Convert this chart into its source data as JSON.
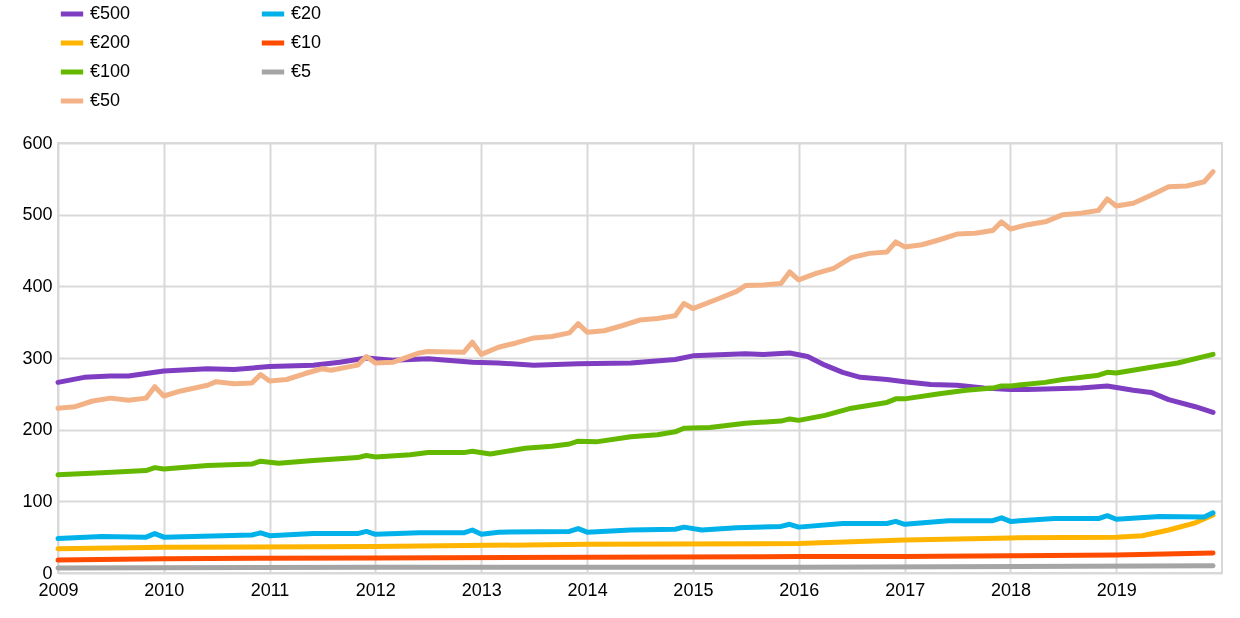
{
  "chart_data": {
    "type": "line",
    "xlim": [
      "2009",
      "2020"
    ],
    "xticks": [
      "2009",
      "2010",
      "2011",
      "2012",
      "2013",
      "2014",
      "2015",
      "2016",
      "2017",
      "2018",
      "2019"
    ],
    "ylim": [
      0,
      600
    ],
    "yticks": [
      0,
      100,
      200,
      300,
      400,
      500,
      600
    ],
    "grid": true,
    "legend": "top left",
    "series": [
      {
        "name": "€500",
        "color": "#7f3dc2",
        "x": [
          "2009-01",
          "2009-04",
          "2009-07",
          "2009-09",
          "2010-01",
          "2010-06",
          "2010-09",
          "2011-01",
          "2011-06",
          "2011-09",
          "2011-12",
          "2012-03",
          "2012-07",
          "2012-12",
          "2013-03",
          "2013-07",
          "2013-12",
          "2014-06",
          "2014-11",
          "2015-01",
          "2015-07",
          "2015-09",
          "2015-12",
          "2016-02",
          "2016-04",
          "2016-06",
          "2016-08",
          "2016-11",
          "2017-01",
          "2017-04",
          "2017-07",
          "2017-10",
          "2018-01",
          "2018-03",
          "2018-09",
          "2018-12",
          "2019-03",
          "2019-05",
          "2019-07",
          "2019-10",
          "2019-12"
        ],
        "values": [
          266,
          273,
          275,
          275,
          282,
          285,
          284,
          288,
          290,
          294,
          300,
          297,
          299,
          294,
          293,
          290,
          292,
          293,
          298,
          303,
          306,
          305,
          307,
          302,
          290,
          280,
          273,
          270,
          267,
          263,
          262,
          258,
          256,
          256,
          258,
          261,
          255,
          252,
          242,
          232,
          224
        ]
      },
      {
        "name": "€200",
        "color": "#ffb400",
        "x": [
          "2009-01",
          "2010-01",
          "2012-01",
          "2014-01",
          "2016-01",
          "2017-01",
          "2018-01",
          "2019-01",
          "2019-04",
          "2019-07",
          "2019-10",
          "2019-12"
        ],
        "values": [
          34,
          36,
          37,
          40,
          41,
          46,
          49,
          50,
          52,
          60,
          70,
          81
        ]
      },
      {
        "name": "€100",
        "color": "#65b800",
        "x": [
          "2009-01",
          "2009-06",
          "2009-11",
          "2009-12",
          "2010-01",
          "2010-06",
          "2010-11",
          "2010-12",
          "2011-02",
          "2011-06",
          "2011-11",
          "2011-12",
          "2012-01",
          "2012-05",
          "2012-07",
          "2012-11",
          "2012-12",
          "2013-02",
          "2013-06",
          "2013-09",
          "2013-11",
          "2013-12",
          "2014-02",
          "2014-06",
          "2014-09",
          "2014-11",
          "2014-12",
          "2015-03",
          "2015-07",
          "2015-11",
          "2015-12",
          "2016-01",
          "2016-04",
          "2016-07",
          "2016-11",
          "2016-12",
          "2017-01",
          "2017-05",
          "2017-08",
          "2017-11",
          "2017-12",
          "2018-01",
          "2018-05",
          "2018-07",
          "2018-11",
          "2018-12",
          "2019-01",
          "2019-05",
          "2019-08",
          "2019-12"
        ],
        "values": [
          137,
          140,
          143,
          147,
          145,
          150,
          152,
          156,
          153,
          157,
          161,
          164,
          162,
          165,
          168,
          168,
          170,
          166,
          174,
          177,
          180,
          184,
          183,
          190,
          193,
          197,
          202,
          203,
          209,
          212,
          215,
          213,
          220,
          230,
          238,
          243,
          243,
          250,
          255,
          258,
          261,
          261,
          266,
          270,
          276,
          280,
          279,
          287,
          293,
          305
        ]
      },
      {
        "name": "€50",
        "color": "#f3b286",
        "x": [
          "2009-01",
          "2009-03",
          "2009-05",
          "2009-07",
          "2009-09",
          "2009-11",
          "2009-12",
          "2010-01",
          "2010-03",
          "2010-06",
          "2010-07",
          "2010-09",
          "2010-11",
          "2010-12",
          "2011-01",
          "2011-03",
          "2011-05",
          "2011-07",
          "2011-08",
          "2011-11",
          "2011-12",
          "2012-01",
          "2012-03",
          "2012-06",
          "2012-07",
          "2012-11",
          "2012-12",
          "2013-01",
          "2013-03",
          "2013-05",
          "2013-07",
          "2013-09",
          "2013-11",
          "2013-12",
          "2014-01",
          "2014-03",
          "2014-05",
          "2014-07",
          "2014-09",
          "2014-11",
          "2014-12",
          "2015-01",
          "2015-04",
          "2015-06",
          "2015-07",
          "2015-09",
          "2015-11",
          "2015-12",
          "2016-01",
          "2016-03",
          "2016-05",
          "2016-07",
          "2016-09",
          "2016-11",
          "2016-12",
          "2017-01",
          "2017-03",
          "2017-05",
          "2017-07",
          "2017-09",
          "2017-11",
          "2017-12",
          "2018-01",
          "2018-03",
          "2018-05",
          "2018-07",
          "2018-09",
          "2018-11",
          "2018-12",
          "2019-01",
          "2019-03",
          "2019-05",
          "2019-07",
          "2019-09",
          "2019-11",
          "2019-12"
        ],
        "values": [
          230,
          232,
          240,
          244,
          241,
          244,
          260,
          247,
          254,
          262,
          267,
          264,
          265,
          277,
          268,
          270,
          278,
          285,
          283,
          290,
          302,
          293,
          294,
          307,
          309,
          308,
          322,
          305,
          315,
          321,
          328,
          330,
          335,
          348,
          336,
          338,
          345,
          353,
          355,
          359,
          376,
          369,
          383,
          393,
          401,
          402,
          404,
          420,
          409,
          418,
          425,
          440,
          446,
          448,
          462,
          455,
          458,
          465,
          473,
          474,
          478,
          490,
          480,
          486,
          490,
          500,
          502,
          506,
          522,
          512,
          516,
          527,
          539,
          540,
          546,
          560
        ]
      },
      {
        "name": "€20",
        "color": "#00b1ea",
        "x": [
          "2009-01",
          "2009-06",
          "2009-11",
          "2009-12",
          "2010-01",
          "2010-11",
          "2010-12",
          "2011-01",
          "2011-06",
          "2011-11",
          "2011-12",
          "2012-01",
          "2012-06",
          "2012-11",
          "2012-12",
          "2013-01",
          "2013-03",
          "2013-11",
          "2013-12",
          "2014-01",
          "2014-06",
          "2014-11",
          "2014-12",
          "2015-02",
          "2015-06",
          "2015-11",
          "2015-12",
          "2016-01",
          "2016-06",
          "2016-11",
          "2016-12",
          "2017-01",
          "2017-06",
          "2017-11",
          "2017-12",
          "2018-01",
          "2018-06",
          "2018-11",
          "2018-12",
          "2019-01",
          "2019-06",
          "2019-11",
          "2019-12"
        ],
        "values": [
          48,
          51,
          50,
          55,
          50,
          53,
          56,
          52,
          55,
          55,
          58,
          54,
          56,
          56,
          60,
          54,
          57,
          58,
          62,
          57,
          60,
          61,
          64,
          60,
          63,
          65,
          68,
          64,
          69,
          69,
          72,
          68,
          73,
          73,
          77,
          72,
          76,
          76,
          80,
          75,
          79,
          78,
          84
        ]
      },
      {
        "name": "€10",
        "color": "#ff4b00",
        "x": [
          "2009-01",
          "2010-01",
          "2012-01",
          "2014-01",
          "2016-01",
          "2017-01",
          "2018-01",
          "2019-01",
          "2019-12"
        ],
        "values": [
          18,
          20,
          21,
          22,
          23,
          23,
          24,
          25,
          28
        ]
      },
      {
        "name": "€5",
        "color": "#a5a5a5",
        "x": [
          "2009-01",
          "2012-01",
          "2016-01",
          "2019-12"
        ],
        "values": [
          7,
          8,
          8,
          10
        ]
      }
    ]
  }
}
